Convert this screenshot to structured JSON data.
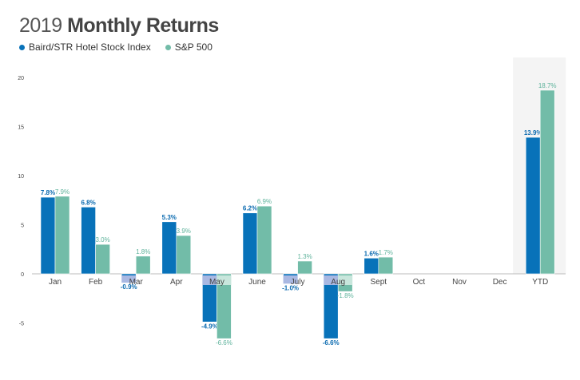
{
  "chart_data": {
    "type": "bar",
    "title_year": "2019",
    "title_main": "Monthly Returns",
    "categories": [
      "Jan",
      "Feb",
      "Mar",
      "Apr",
      "May",
      "June",
      "July",
      "Aug",
      "Sept",
      "Oct",
      "Nov",
      "Dec",
      "YTD"
    ],
    "series": [
      {
        "name": "Baird/STR Hotel Stock Index",
        "color": "#0872b9",
        "values": [
          7.8,
          6.8,
          -0.9,
          5.3,
          -4.9,
          6.2,
          -1.0,
          -6.6,
          1.6,
          null,
          null,
          null,
          13.9
        ],
        "labels": [
          "7.8%",
          "6.8%",
          "-0.9%",
          "5.3%",
          "-4.9%",
          "6.2%",
          "-1.0%",
          "-6.6%",
          "1.6%",
          "",
          "",
          "",
          "13.9%"
        ]
      },
      {
        "name": "S&P 500",
        "color": "#72bca8",
        "values": [
          7.9,
          3.0,
          1.8,
          3.9,
          -6.6,
          6.9,
          1.3,
          -1.8,
          1.7,
          null,
          null,
          null,
          18.7
        ],
        "labels": [
          "7.9%",
          "3.0%",
          "1.8%",
          "3.9%",
          "-6.6%",
          "6.9%",
          "1.3%",
          "-1.8%",
          "1.7%",
          "",
          "",
          "",
          "18.7%"
        ]
      }
    ],
    "y_ticks": [
      "20",
      "15",
      "10",
      "5",
      "0",
      "-5"
    ],
    "y_tick_values": [
      20,
      15,
      10,
      5,
      0,
      -5
    ],
    "ylim": [
      -7,
      20
    ],
    "highlight_category": "YTD",
    "legend_position": "top-left",
    "grid": false
  }
}
